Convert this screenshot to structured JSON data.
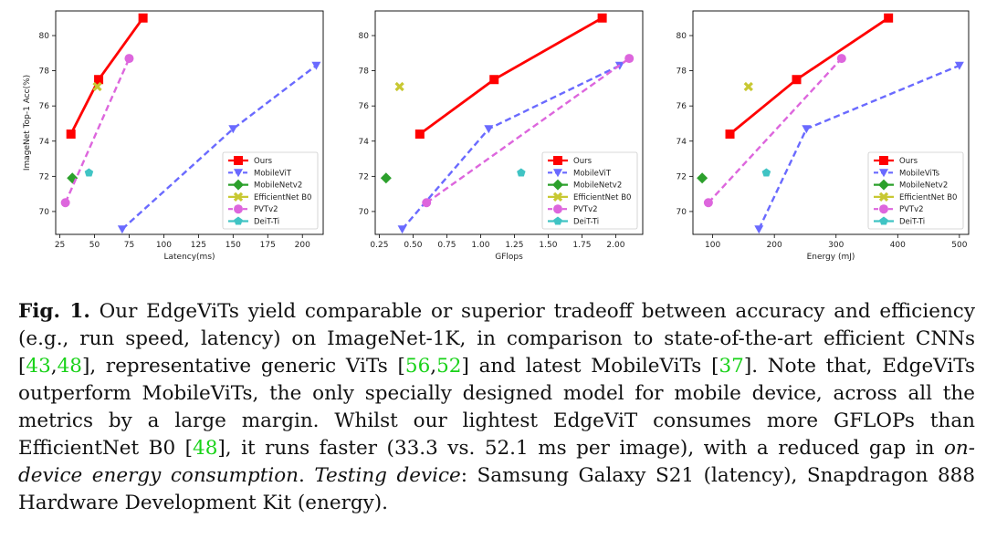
{
  "chart_data": [
    {
      "type": "line",
      "xlabel": "Latency(ms)",
      "ylabel": "ImageNet Top-1 Acc(%)",
      "xlim": [
        22,
        215
      ],
      "ylim": [
        68.7,
        81.4
      ],
      "xticks": [
        25,
        50,
        75,
        100,
        125,
        150,
        175,
        200
      ],
      "xtick_labels": [
        "25",
        "50",
        "75",
        "100",
        "125",
        "150",
        "175",
        "200"
      ],
      "yticks": [
        70,
        72,
        74,
        76,
        78,
        80
      ],
      "ytick_labels": [
        "70",
        "72",
        "74",
        "76",
        "78",
        "80"
      ],
      "legend": "bottom-right",
      "series": [
        {
          "name": "Ours",
          "color": "#ff0000",
          "marker": "square",
          "dash": false,
          "x": [
            33,
            53,
            85
          ],
          "y": [
            74.4,
            77.5,
            81.0
          ]
        },
        {
          "name": "MobileViT",
          "color": "#6a6aff",
          "marker": "triangle-down",
          "dash": true,
          "x": [
            70,
            150,
            210
          ],
          "y": [
            69.0,
            74.7,
            78.3
          ]
        },
        {
          "name": "MobileNetv2",
          "color": "#2ca02c",
          "marker": "diamond",
          "dash": false,
          "x": [
            34
          ],
          "y": [
            71.9
          ]
        },
        {
          "name": "EfficientNet B0",
          "color": "#c8c832",
          "marker": "x",
          "dash": false,
          "x": [
            52
          ],
          "y": [
            77.1
          ]
        },
        {
          "name": "PVTv2",
          "color": "#dd66dd",
          "marker": "circle",
          "dash": true,
          "x": [
            29,
            75
          ],
          "y": [
            70.5,
            78.7
          ]
        },
        {
          "name": "DeiT-Ti",
          "color": "#40c4c4",
          "marker": "pentagon",
          "dash": false,
          "x": [
            46
          ],
          "y": [
            72.2
          ]
        }
      ]
    },
    {
      "type": "line",
      "xlabel": "GFlops",
      "ylabel": "",
      "xlim": [
        0.22,
        2.2
      ],
      "ylim": [
        68.7,
        81.4
      ],
      "xticks": [
        0.25,
        0.5,
        0.75,
        1.0,
        1.25,
        1.5,
        1.75,
        2.0
      ],
      "xtick_labels": [
        "0.25",
        "0.50",
        "0.75",
        "1.00",
        "1.25",
        "1.50",
        "1.75",
        "2.00"
      ],
      "yticks": [
        70,
        72,
        74,
        76,
        78,
        80
      ],
      "ytick_labels": [
        "70",
        "72",
        "74",
        "76",
        "78",
        "80"
      ],
      "legend": "bottom-right",
      "series": [
        {
          "name": "Ours",
          "color": "#ff0000",
          "marker": "square",
          "dash": false,
          "x": [
            0.55,
            1.1,
            1.9
          ],
          "y": [
            74.4,
            77.5,
            81.0
          ]
        },
        {
          "name": "MobileViT",
          "color": "#6a6aff",
          "marker": "triangle-down",
          "dash": true,
          "x": [
            0.42,
            1.06,
            2.03
          ],
          "y": [
            69.0,
            74.7,
            78.3
          ]
        },
        {
          "name": "MobileNetv2",
          "color": "#2ca02c",
          "marker": "diamond",
          "dash": false,
          "x": [
            0.3
          ],
          "y": [
            71.9
          ]
        },
        {
          "name": "EfficientNet B0",
          "color": "#c8c832",
          "marker": "x",
          "dash": false,
          "x": [
            0.4
          ],
          "y": [
            77.1
          ]
        },
        {
          "name": "PVTv2",
          "color": "#dd66dd",
          "marker": "circle",
          "dash": true,
          "x": [
            0.6,
            2.1
          ],
          "y": [
            70.5,
            78.7
          ]
        },
        {
          "name": "DeiT-Ti",
          "color": "#40c4c4",
          "marker": "pentagon",
          "dash": false,
          "x": [
            1.3
          ],
          "y": [
            72.2
          ]
        }
      ]
    },
    {
      "type": "line",
      "xlabel": "Energy (mJ)",
      "ylabel": "",
      "xlim": [
        68,
        515
      ],
      "ylim": [
        68.7,
        81.4
      ],
      "xticks": [
        100,
        200,
        300,
        400,
        500
      ],
      "xtick_labels": [
        "100",
        "200",
        "300",
        "400",
        "500"
      ],
      "yticks": [
        70,
        72,
        74,
        76,
        78,
        80
      ],
      "ytick_labels": [
        "70",
        "72",
        "74",
        "76",
        "78",
        "80"
      ],
      "legend": "bottom-right",
      "series": [
        {
          "name": "Ours",
          "color": "#ff0000",
          "marker": "square",
          "dash": false,
          "x": [
            128,
            236,
            385
          ],
          "y": [
            74.4,
            77.5,
            81.0
          ]
        },
        {
          "name": "MobileViTs",
          "color": "#6a6aff",
          "marker": "triangle-down",
          "dash": true,
          "x": [
            175,
            252,
            500
          ],
          "y": [
            69.0,
            74.7,
            78.3
          ]
        },
        {
          "name": "MobileNetv2",
          "color": "#2ca02c",
          "marker": "diamond",
          "dash": false,
          "x": [
            83
          ],
          "y": [
            71.9
          ]
        },
        {
          "name": "EfficientNet B0",
          "color": "#c8c832",
          "marker": "x",
          "dash": false,
          "x": [
            158
          ],
          "y": [
            77.1
          ]
        },
        {
          "name": "PVTv2",
          "color": "#dd66dd",
          "marker": "circle",
          "dash": true,
          "x": [
            93,
            309
          ],
          "y": [
            70.5,
            78.7
          ]
        },
        {
          "name": "DeiT-Ti",
          "color": "#40c4c4",
          "marker": "pentagon",
          "dash": false,
          "x": [
            187
          ],
          "y": [
            72.2
          ]
        }
      ]
    }
  ],
  "caption": {
    "label": "Fig. 1.",
    "t1": " Our EdgeViTs yield comparable or superior tradeoff between accuracy and efficiency (e.g., run speed, latency) on ImageNet-1K, in comparison to state-of-the-art efficient CNNs [",
    "c43": "43",
    "c48a": "48",
    "t2": "], representative generic ViTs [",
    "c56": "56",
    "c52": "52",
    "t3": "] and latest MobileViTs [",
    "c37": "37",
    "t4": "]. Note that, EdgeViTs outperform MobileViTs, the only specially designed model for mobile device, across all the metrics by a large margin. Whilst our lightest EdgeViT consumes more GFLOPs than EfficientNet B0 [",
    "c48b": "48",
    "t5": "], it runs faster (33.3 vs. 52.1 ms per image), with a reduced gap in ",
    "em1": "on-device energy consumption",
    "t6": ". ",
    "em2": "Testing device",
    "t7": ": Samsung Galaxy S21 (latency), Snapdragon 888 Hardware Development Kit (energy)."
  }
}
